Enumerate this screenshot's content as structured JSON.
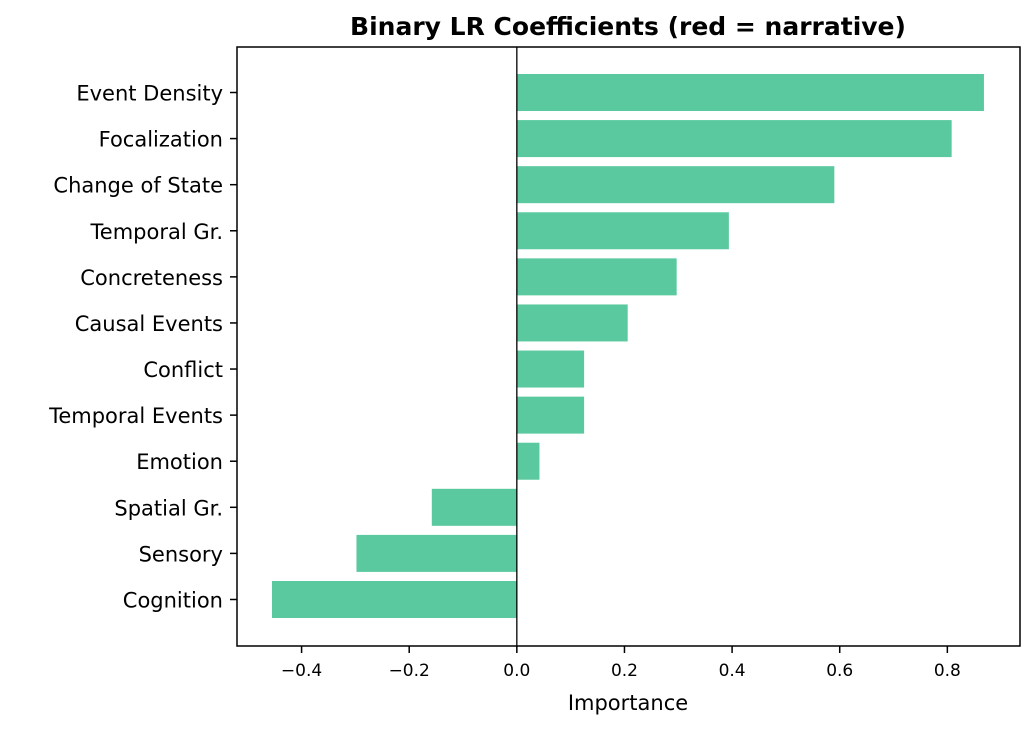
{
  "chart_data": {
    "type": "bar",
    "orientation": "horizontal",
    "title": "Binary LR Coefficients (red = narrative)",
    "xlabel": "Importance",
    "ylabel": "",
    "categories": [
      "Event Density",
      "Focalization",
      "Change of State",
      "Temporal Gr.",
      "Concreteness",
      "Causal Events",
      "Conflict",
      "Temporal Events",
      "Emotion",
      "Spatial Gr.",
      "Sensory",
      "Cognition"
    ],
    "values": [
      0.868,
      0.808,
      0.59,
      0.394,
      0.297,
      0.206,
      0.125,
      0.125,
      0.042,
      -0.158,
      -0.298,
      -0.455
    ],
    "xlim": [
      -0.52,
      0.935
    ],
    "xticks": [
      -0.4,
      -0.2,
      0.0,
      0.2,
      0.4,
      0.6,
      0.8
    ],
    "xtick_labels": [
      "−0.4",
      "−0.2",
      "0.0",
      "0.2",
      "0.4",
      "0.6",
      "0.8"
    ],
    "bar_color": "#5ac99f",
    "zero_line": true,
    "grid": false
  }
}
